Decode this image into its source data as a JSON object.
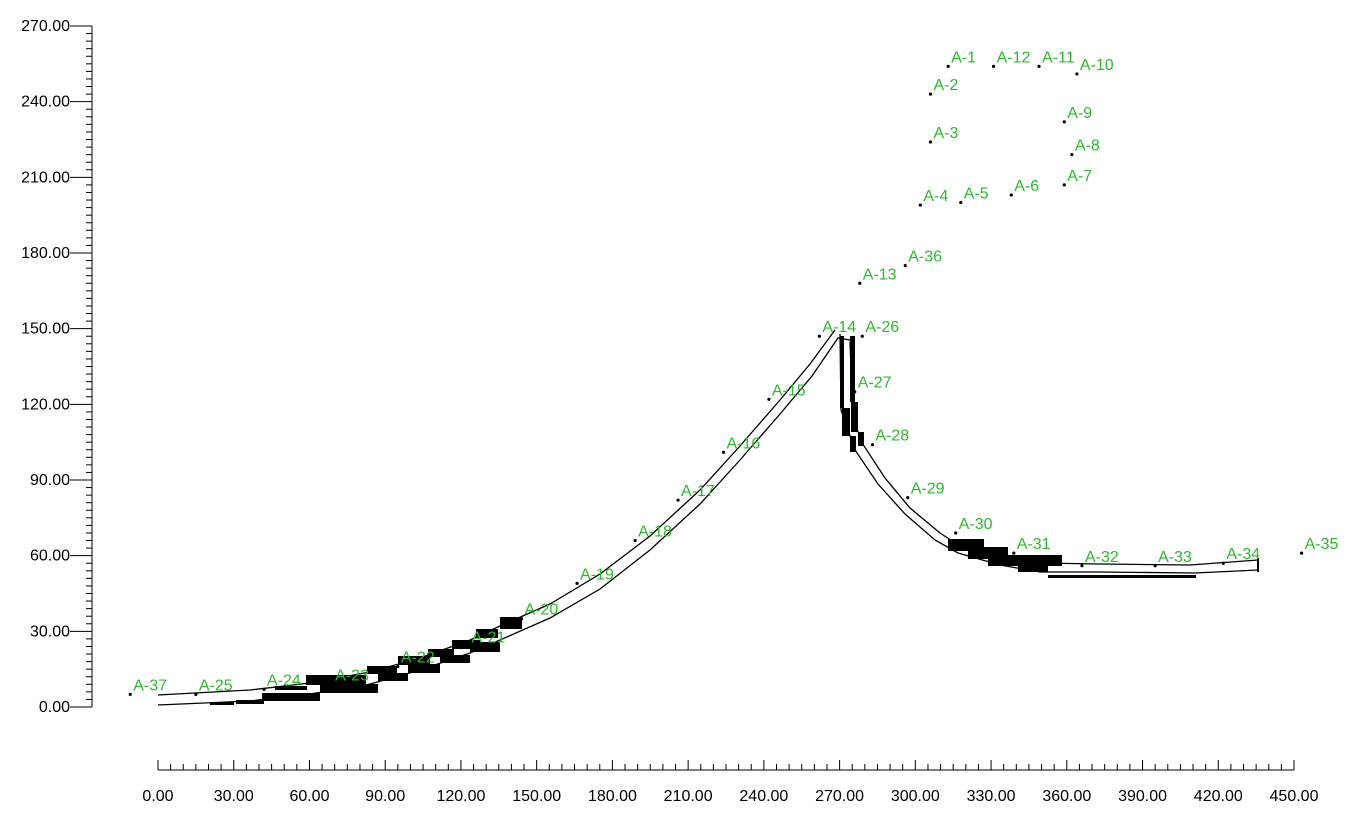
{
  "colors": {
    "axis": "#000000",
    "label": "#2db82d",
    "point": "#000000",
    "fill": "#000000"
  },
  "y_axis": {
    "min": 0,
    "max": 270,
    "tick_labels": [
      "0.00",
      "30.00",
      "60.00",
      "90.00",
      "120.00",
      "150.00",
      "180.00",
      "210.00",
      "240.00",
      "270.00"
    ]
  },
  "x_axis": {
    "min": 0,
    "max": 450,
    "tick_labels": [
      "0.00",
      "30.00",
      "60.00",
      "90.00",
      "120.00",
      "150.00",
      "180.00",
      "210.00",
      "240.00",
      "270.00",
      "300.00",
      "330.00",
      "360.00",
      "390.00",
      "420.00",
      "450.00"
    ]
  },
  "points": [
    {
      "label": "A-1",
      "x": 313,
      "y": 254
    },
    {
      "label": "A-2",
      "x": 306,
      "y": 243
    },
    {
      "label": "A-3",
      "x": 306,
      "y": 224
    },
    {
      "label": "A-4",
      "x": 302,
      "y": 199
    },
    {
      "label": "A-5",
      "x": 318,
      "y": 200
    },
    {
      "label": "A-6",
      "x": 338,
      "y": 203
    },
    {
      "label": "A-7",
      "x": 359,
      "y": 207
    },
    {
      "label": "A-8",
      "x": 362,
      "y": 219
    },
    {
      "label": "A-9",
      "x": 359,
      "y": 232
    },
    {
      "label": "A-10",
      "x": 364,
      "y": 251
    },
    {
      "label": "A-11",
      "x": 349,
      "y": 254
    },
    {
      "label": "A-12",
      "x": 331,
      "y": 254
    },
    {
      "label": "A-13",
      "x": 278,
      "y": 168
    },
    {
      "label": "A-14",
      "x": 262,
      "y": 147
    },
    {
      "label": "A-15",
      "x": 242,
      "y": 122
    },
    {
      "label": "A-16",
      "x": 224,
      "y": 101
    },
    {
      "label": "A-17",
      "x": 206,
      "y": 82
    },
    {
      "label": "A-18",
      "x": 189,
      "y": 66
    },
    {
      "label": "A-19",
      "x": 166,
      "y": 49
    },
    {
      "label": "A-20",
      "x": 144,
      "y": 35
    },
    {
      "label": "A-21",
      "x": 123,
      "y": 24
    },
    {
      "label": "A-22",
      "x": 95,
      "y": 16
    },
    {
      "label": "A-23",
      "x": 69,
      "y": 9
    },
    {
      "label": "A-24",
      "x": 42,
      "y": 7
    },
    {
      "label": "A-25",
      "x": 15,
      "y": 5
    },
    {
      "label": "A-26",
      "x": 279,
      "y": 147
    },
    {
      "label": "A-27",
      "x": 276,
      "y": 125
    },
    {
      "label": "A-28",
      "x": 283,
      "y": 104
    },
    {
      "label": "A-29",
      "x": 297,
      "y": 83
    },
    {
      "label": "A-30",
      "x": 316,
      "y": 69
    },
    {
      "label": "A-31",
      "x": 339,
      "y": 61
    },
    {
      "label": "A-32",
      "x": 366,
      "y": 56
    },
    {
      "label": "A-33",
      "x": 395,
      "y": 56
    },
    {
      "label": "A-34",
      "x": 422,
      "y": 57
    },
    {
      "label": "A-35",
      "x": 453,
      "y": 61
    },
    {
      "label": "A-36",
      "x": 296,
      "y": 175
    },
    {
      "label": "A-37",
      "x": -11,
      "y": 5
    }
  ]
}
